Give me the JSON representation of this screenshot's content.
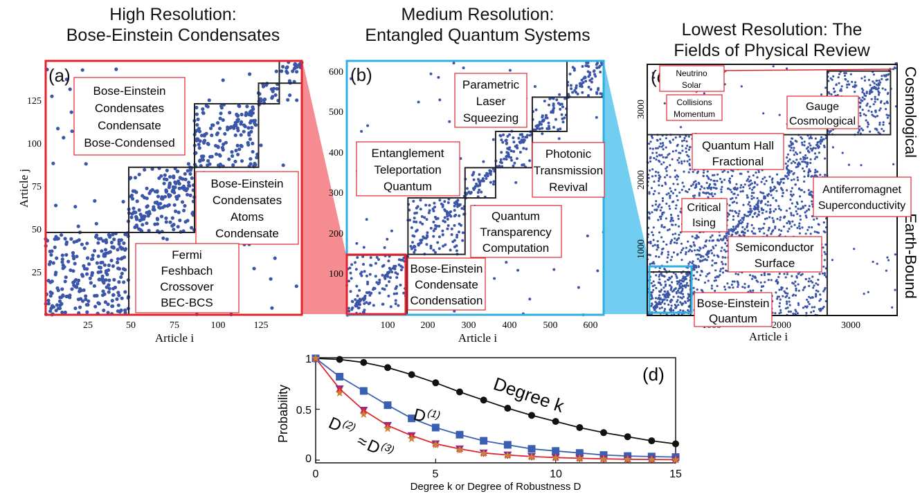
{
  "titles": {
    "a": [
      "High Resolution:",
      "Bose-Einstein Condensates"
    ],
    "b": [
      "Medium Resolution:",
      "Entangled Quantum Systems"
    ],
    "c": [
      "Lowest Resolution:  The",
      "Fields of Physical Review"
    ]
  },
  "panel_a": {
    "tag": "(a)",
    "xlabel": "Article  i",
    "ylabel": "Article  j",
    "xticks": [
      "25",
      "50",
      "75",
      "100",
      "125"
    ],
    "yticks": [
      "25",
      "50",
      "75",
      "100",
      "125"
    ],
    "boxes": [
      [
        "Bose-Einstein",
        "Condensates",
        "Condensate",
        "Bose-Condensed"
      ],
      [
        "Bose-Einstein",
        "Condensates",
        "Atoms",
        "Condensate"
      ],
      [
        "Fermi",
        "Feshbach",
        "Crossover",
        "BEC-BCS"
      ]
    ]
  },
  "panel_b": {
    "tag": "(b)",
    "xlabel": "Article  i",
    "xticks": [
      "100",
      "200",
      "300",
      "400",
      "500",
      "600"
    ],
    "yticks": [
      "100",
      "200",
      "300",
      "400",
      "500",
      "600"
    ],
    "boxes": [
      [
        "Parametric",
        "Laser",
        "Squeezing"
      ],
      [
        "Entanglement",
        "Teleportation",
        "Quantum"
      ],
      [
        "Photonic",
        "Transmission",
        "Revival"
      ],
      [
        "Quantum",
        "Transparency",
        "Computation"
      ],
      [
        "Bose-Einstein",
        "Condensate",
        "Condensation"
      ]
    ]
  },
  "panel_c": {
    "tag": "(c)",
    "xlabel": "Article  i",
    "xticks": [
      "1000",
      "2000",
      "3000"
    ],
    "yticks": [
      "1000",
      "2000",
      "3000"
    ],
    "side_labels": [
      "Cosmological",
      "Earth-Bound"
    ],
    "boxes": [
      [
        "Neutrino",
        "Solar"
      ],
      [
        "Collisions",
        "Momentum"
      ],
      [
        "Gauge",
        "Cosmological"
      ],
      [
        "Quantum Hall",
        "Fractional"
      ],
      [
        "Antiferromagnet",
        "Superconductivity"
      ],
      [
        "Critical",
        "Ising"
      ],
      [
        "Semiconductor",
        "Surface"
      ],
      [
        "Bose-Einstein",
        "Quantum"
      ]
    ]
  },
  "panel_d": {
    "tag": "(d)",
    "xlabel": "Degree k or Degree of Robustness D",
    "ylabel": "Probability",
    "xticks": [
      "0",
      "5",
      "10",
      "15"
    ],
    "yticks": [
      "0",
      "0.5",
      "1"
    ],
    "labels": {
      "degree": "Degree  k",
      "d1": "D",
      "d1_sup": "(1)",
      "d2": "D",
      "d2_sup": "(2)",
      "approx": "≈",
      "d3": "D",
      "d3_sup": "(3)"
    }
  },
  "colors": {
    "dot": "#3b55a8",
    "red": "#e0232e",
    "cyan": "#2eaee3",
    "black": "#111111",
    "blueLine": "#3a5fb0",
    "purple": "#8b2d8b",
    "star": "#c8823a"
  },
  "chart_data": [
    {
      "type": "scatter",
      "title": "(a)",
      "xlabel": "Article  i",
      "ylabel": "Article  j",
      "xlim": [
        0,
        148
      ],
      "ylim": [
        0,
        148
      ],
      "blocks": [
        [
          0,
          48
        ],
        [
          48,
          86
        ],
        [
          86,
          123
        ],
        [
          123,
          135
        ],
        [
          135,
          148
        ]
      ]
    },
    {
      "type": "scatter",
      "title": "(b)",
      "xlabel": "Article  i",
      "xlim": [
        0,
        630
      ],
      "ylim": [
        0,
        630
      ],
      "blocks": [
        [
          0,
          148
        ],
        [
          150,
          290
        ],
        [
          290,
          365
        ],
        [
          365,
          455
        ],
        [
          455,
          540
        ],
        [
          540,
          630
        ]
      ]
    },
    {
      "type": "scatter",
      "title": "(c)",
      "xlabel": "Article  i",
      "xlim": [
        0,
        3750
      ],
      "ylim": [
        0,
        3750
      ],
      "blocks": [
        [
          0,
          650
        ],
        [
          0,
          2700
        ],
        [
          2700,
          3650
        ]
      ]
    },
    {
      "type": "line",
      "title": "(d)",
      "xlabel": "Degree k or Degree of Robustness D",
      "ylabel": "Probability",
      "xlim": [
        0,
        15
      ],
      "ylim": [
        0,
        1
      ],
      "x": [
        0,
        1,
        2,
        3,
        4,
        5,
        6,
        7,
        8,
        9,
        10,
        11,
        12,
        13,
        14,
        15
      ],
      "series": [
        {
          "name": "Degree  k",
          "marker": "circle",
          "color": "#111111",
          "values": [
            1.0,
            0.99,
            0.96,
            0.91,
            0.84,
            0.76,
            0.67,
            0.59,
            0.51,
            0.44,
            0.38,
            0.32,
            0.27,
            0.23,
            0.19,
            0.16
          ]
        },
        {
          "name": "D(1)",
          "marker": "square",
          "color": "#3a5fb0",
          "values": [
            1.0,
            0.82,
            0.68,
            0.54,
            0.41,
            0.32,
            0.25,
            0.19,
            0.15,
            0.11,
            0.09,
            0.07,
            0.05,
            0.04,
            0.035,
            0.03
          ]
        },
        {
          "name": "D(2)",
          "marker": "triangle",
          "color": "#e0232e",
          "values": [
            1.0,
            0.7,
            0.49,
            0.34,
            0.24,
            0.16,
            0.11,
            0.07,
            0.05,
            0.035,
            0.025,
            0.018,
            0.012,
            0.008,
            0.006,
            0.004
          ]
        },
        {
          "name": "D(3)",
          "marker": "star",
          "color": "#c8823a",
          "values": [
            1.0,
            0.66,
            0.45,
            0.31,
            0.21,
            0.15,
            0.1,
            0.065,
            0.045,
            0.03,
            0.022,
            0.015,
            0.01,
            0.007,
            0.005,
            0.003
          ]
        }
      ]
    }
  ]
}
